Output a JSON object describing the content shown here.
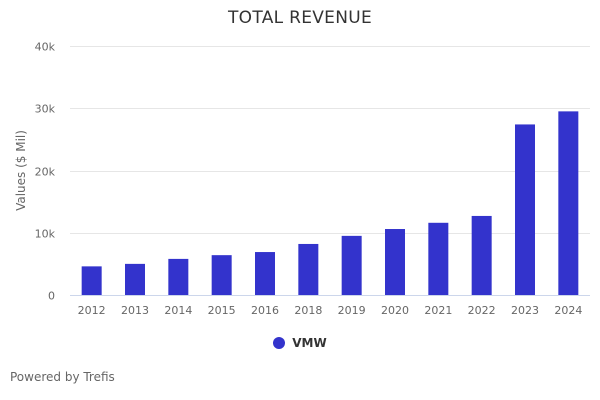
{
  "chart_data": {
    "type": "bar",
    "title": "TOTAL REVENUE",
    "xlabel": "",
    "ylabel": "Values ($ Mil)",
    "ylim": [
      0,
      40000
    ],
    "yticks": [
      {
        "value": 0,
        "label": "0"
      },
      {
        "value": 10000,
        "label": "10k"
      },
      {
        "value": 20000,
        "label": "20k"
      },
      {
        "value": 30000,
        "label": "30k"
      },
      {
        "value": 40000,
        "label": "40k"
      }
    ],
    "grid": true,
    "categories": [
      "2012",
      "2013",
      "2014",
      "2015",
      "2016",
      "2018",
      "2019",
      "2020",
      "2021",
      "2022",
      "2023",
      "2024"
    ],
    "series": [
      {
        "name": "VMW",
        "color": "#3333cc",
        "values": [
          4600,
          5000,
          5800,
          6400,
          6900,
          8200,
          9500,
          10600,
          11600,
          12700,
          27400,
          29500
        ]
      }
    ],
    "legend_position": "bottom-center"
  },
  "footer": {
    "credit": "Powered by Trefis"
  }
}
